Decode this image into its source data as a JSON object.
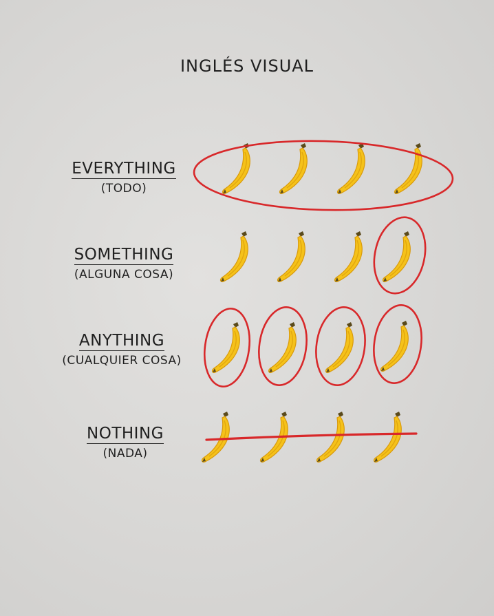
{
  "title": "INGLÉS VISUAL",
  "rows": [
    {
      "word": "EVERYTHING",
      "translation": "(TODO)",
      "highlight": "all-circled"
    },
    {
      "word": "SOMETHING",
      "translation": "(ALGUNA COSA)",
      "highlight": "one-circled"
    },
    {
      "word": "ANYTHING",
      "translation": "(CUALQUIER COSA)",
      "highlight": "each-circled"
    },
    {
      "word": "NOTHING",
      "translation": "(NADA)",
      "highlight": "crossed-out"
    }
  ],
  "colors": {
    "banana": "#f5c21a",
    "banana_shade": "#d99a0c",
    "stem": "#5a4a1c",
    "marker": "#d8282a",
    "text": "#1f1f1f"
  },
  "icon": "banana-icon"
}
